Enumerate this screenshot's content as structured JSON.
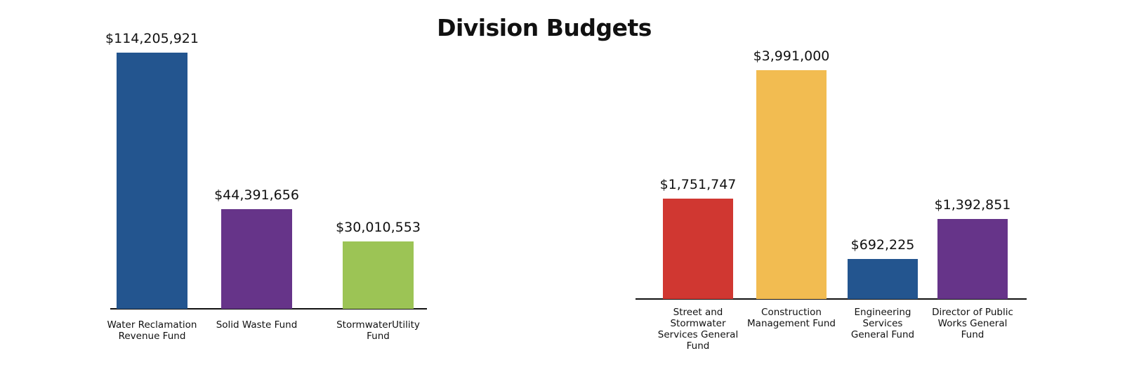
{
  "title": "Division Budgets",
  "chart_data": [
    {
      "type": "bar",
      "title": "Division Budgets",
      "categories": [
        "Water Reclamation Revenue Fund",
        "Solid Waste Fund",
        "StormwaterUtility Fund"
      ],
      "values": [
        114205921,
        44391656,
        30010553
      ],
      "labels": [
        "$114,205,921",
        "$44,391,656",
        "$30,010,553"
      ],
      "colors": [
        "#23558f",
        "#663489",
        "#9cc455"
      ],
      "xlabel": "",
      "ylabel": "",
      "ylim": [
        0,
        114205921
      ],
      "grid": false
    },
    {
      "type": "bar",
      "categories": [
        "Street and Stormwater Services General Fund",
        "Construction Management Fund",
        "Engineering Services General Fund",
        "Director of Public Works General Fund"
      ],
      "values": [
        1751747,
        3991000,
        692225,
        1392851
      ],
      "labels": [
        "$1,751,747",
        "$3,991,000",
        "$692,225",
        "$1,392,851"
      ],
      "colors": [
        "#d03731",
        "#f2bc51",
        "#23558f",
        "#663489"
      ],
      "xlabel": "",
      "ylabel": "",
      "ylim": [
        0,
        3991000
      ],
      "grid": false
    }
  ]
}
